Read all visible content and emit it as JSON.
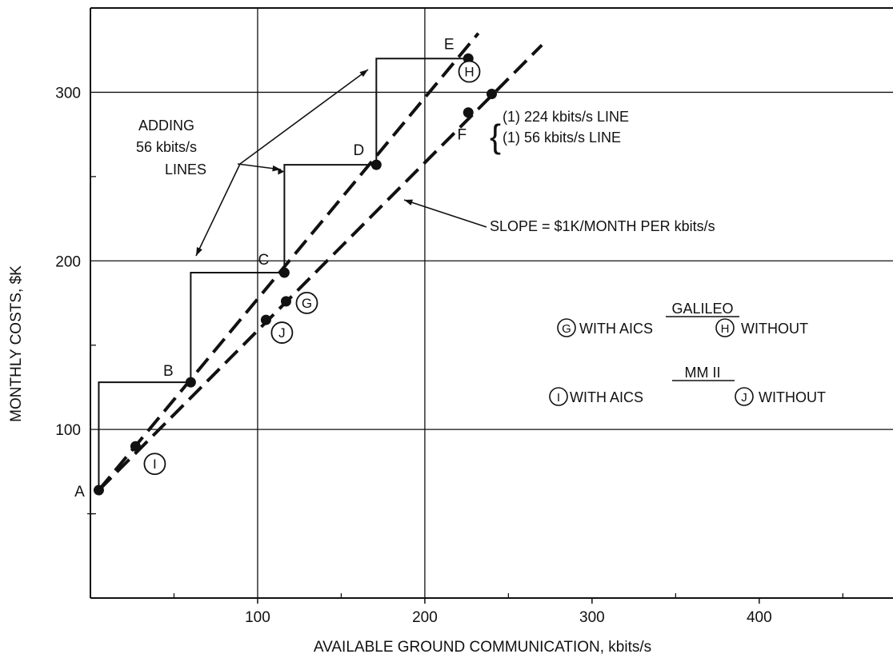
{
  "chart_data": {
    "type": "line",
    "title": "",
    "xlabel": "AVAILABLE GROUND COMMUNICATION, kbits/s",
    "ylabel": "MONTHLY COSTS, $K",
    "xlim": [
      0,
      480
    ],
    "ylim": [
      0,
      350
    ],
    "x_ticks": [
      100,
      200,
      300,
      400
    ],
    "y_ticks": [
      100,
      200,
      300
    ],
    "x_minor_ticks": [
      50,
      150,
      250,
      350,
      450
    ],
    "y_minor_ticks": [
      50,
      150,
      250
    ],
    "grid_x": [
      100,
      200
    ],
    "grid_y": [
      100,
      200,
      300
    ],
    "grid": true,
    "series": [
      {
        "style": "dashed",
        "x": [
          5,
          232
        ],
        "y": [
          64,
          335
        ]
      },
      {
        "style": "dashed",
        "x": [
          5,
          270
        ],
        "y": [
          64,
          328
        ]
      }
    ],
    "step_line": {
      "x": [
        5,
        5,
        60,
        60,
        60,
        116,
        116,
        116,
        171,
        171,
        171,
        226
      ],
      "y": [
        64,
        128,
        128,
        128,
        193,
        193,
        193,
        257,
        257,
        257,
        320,
        320
      ]
    },
    "points": [
      {
        "label": "A",
        "x": 5,
        "y": 64
      },
      {
        "label": "B",
        "x": 60,
        "y": 128
      },
      {
        "label": "C",
        "x": 116,
        "y": 193
      },
      {
        "label": "D",
        "x": 171,
        "y": 257
      },
      {
        "label": "E",
        "x": 226,
        "y": 320
      },
      {
        "label": "F",
        "x": 226,
        "y": 288
      },
      {
        "label": "H",
        "x": 240,
        "y": 299
      },
      {
        "label": "G",
        "x": 117,
        "y": 176
      },
      {
        "label": "J",
        "x": 105,
        "y": 165
      },
      {
        "label": "I",
        "x": 27,
        "y": 90
      }
    ],
    "annotations": {
      "adding_1": "ADDING",
      "adding_2": "56 kbits/s",
      "adding_3": "LINES",
      "line_224": "(1) 224 kbits/s LINE",
      "line_56": "(1)   56 kbits/s LINE",
      "slope": "SLOPE = $1K/MONTH PER kbits/s"
    },
    "legend": {
      "galileo_title": "GALILEO",
      "galileo_with": "WITH AICS",
      "galileo_without": "WITHOUT",
      "mm_title": "MM II",
      "mm_with": "WITH AICS",
      "mm_without": "WITHOUT",
      "symbol_g": "G",
      "symbol_h": "H",
      "symbol_i": "I",
      "symbol_j": "J"
    }
  }
}
